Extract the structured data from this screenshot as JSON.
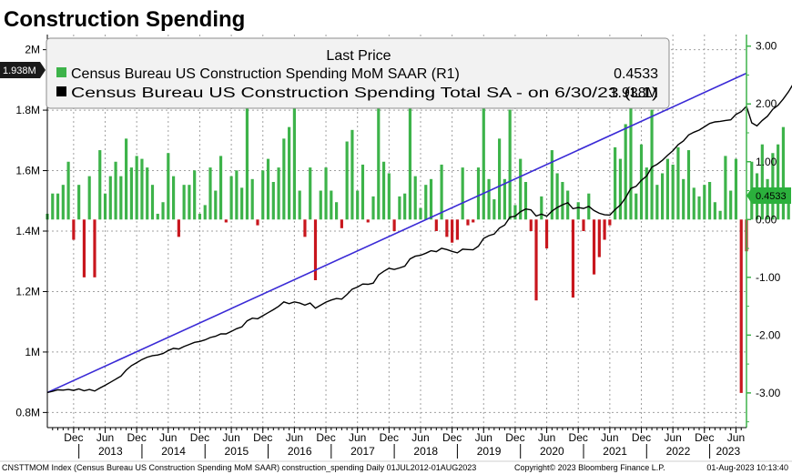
{
  "title": "Construction Spending",
  "legend": {
    "header": "Last Price",
    "items": [
      {
        "label": "Census Bureau US Construction Spending MoM SAAR  (R1)",
        "value": "0.4533",
        "color": "#3db34a"
      },
      {
        "label": "Census Bureau US Construction Spending Total SA -  on 6/30/23  (L1)",
        "value": "1.938M",
        "color": "#000000"
      }
    ]
  },
  "tags": {
    "left_last": "1.938M",
    "right_last": "0.4533"
  },
  "footer": {
    "left": "CNSTTMOM Index (Census Bureau US Construction Spending MoM SAAR) construction_spending  Daily 01JUL2012-01AUG2023",
    "middle": "Copyright© 2023 Bloomberg Finance L.P.",
    "right": "01-Aug-2023 10:13:40"
  },
  "colors": {
    "positive_bar": "#3db34a",
    "negative_bar": "#c8161d",
    "total_line": "#000000",
    "trend_line": "#3a2ad6",
    "right_axis": "#3db34a"
  },
  "chart_data": {
    "type": "bar+line",
    "title": "Construction Spending",
    "x_range": [
      "2012-07",
      "2023-08"
    ],
    "left_axis": {
      "ylim": [
        0.75,
        2.05
      ],
      "ticks": [
        0.8,
        1.0,
        1.2,
        1.4,
        1.6,
        1.8,
        2.0
      ],
      "tick_labels": [
        "0.8M",
        "1M",
        "1.2M",
        "1.4M",
        "1.6M",
        "1.8M",
        "2M"
      ],
      "units": "millions"
    },
    "right_axis": {
      "ylim": [
        -3.6,
        3.2
      ],
      "ticks": [
        -3,
        -2,
        -1,
        0,
        1,
        2,
        3
      ],
      "tick_labels": [
        "-3.00",
        "-2.00",
        "-1.00",
        "0.00",
        "1.00",
        "2.00",
        "3.00"
      ]
    },
    "x_tick_labels": [
      "Dec",
      "Jun",
      "Dec",
      "Jun",
      "Dec",
      "Jun",
      "Dec",
      "Jun",
      "Dec",
      "Jun",
      "Dec",
      "Jun",
      "Dec",
      "Jun",
      "Dec",
      "Jun",
      "Dec",
      "Jun",
      "Dec",
      "Jun",
      "Dec",
      "Jun"
    ],
    "x_tick_months": [
      "2012-12",
      "2013-06",
      "2013-12",
      "2014-06",
      "2014-12",
      "2015-06",
      "2015-12",
      "2016-06",
      "2016-12",
      "2017-06",
      "2017-12",
      "2018-06",
      "2018-12",
      "2019-06",
      "2019-12",
      "2020-06",
      "2020-12",
      "2021-06",
      "2021-12",
      "2022-06",
      "2022-12",
      "2023-06"
    ],
    "year_labels": [
      "2013",
      "2014",
      "2015",
      "2016",
      "2017",
      "2018",
      "2019",
      "2020",
      "2021",
      "2022",
      "2023"
    ],
    "mom_series": {
      "name": "Census Bureau US Construction Spending MoM SAAR",
      "start": "2012-07",
      "values": [
        0.1,
        0.45,
        0.45,
        0.6,
        1.0,
        -0.35,
        0.6,
        -1.0,
        0.75,
        -1.0,
        1.2,
        0.45,
        0.75,
        1.0,
        0.75,
        1.4,
        0.9,
        1.1,
        1.05,
        0.9,
        0.6,
        0.1,
        0.3,
        1.15,
        0.75,
        -0.3,
        0.6,
        0.6,
        0.85,
        0.1,
        0.25,
        0.9,
        0.5,
        1.1,
        -0.05,
        0.75,
        0.85,
        0.55,
        2.4,
        0.7,
        -0.1,
        0.85,
        1.05,
        0.65,
        0.9,
        1.4,
        1.6,
        1.95,
        0.5,
        -0.3,
        0.9,
        -1.05,
        0.5,
        0.9,
        0.5,
        0.3,
        -0.15,
        1.35,
        1.55,
        0.5,
        0.95,
        -0.05,
        0.4,
        2.2,
        1.0,
        0.8,
        -0.2,
        0.4,
        0.45,
        1.95,
        0.75,
        0.2,
        0.6,
        0.7,
        -0.2,
        0.95,
        -0.3,
        -0.4,
        -0.35,
        0.9,
        -0.1,
        -0.05,
        0.9,
        1.95,
        0.7,
        0.35,
        1.4,
        0.7,
        1.9,
        0.25,
        1.05,
        0.65,
        -0.2,
        -1.4,
        0.4,
        -0.5,
        1.2,
        0.8,
        0.65,
        0.5,
        -1.35,
        0.3,
        -0.2,
        0.45,
        -0.95,
        -0.65,
        -0.35,
        -0.1,
        1.25,
        1.05,
        1.65,
        2.05,
        0.45,
        1.3,
        0.9,
        1.9,
        0.6,
        0.8,
        1.05,
        0.95,
        1.25,
        0.7,
        1.2,
        0.55,
        0.4,
        0.6,
        0.65,
        0.3,
        0.15,
        1.1,
        0.5,
        1.05,
        -3.0,
        -0.55,
        1.0,
        0.8,
        1.3,
        0.7,
        1.15,
        1.3,
        1.6,
        0.5,
        1.1,
        0.55,
        1.8,
        -1.35,
        0.9,
        2.1,
        0.7,
        1.55,
        -0.2,
        0.9,
        0.8,
        0.65,
        0.4,
        0.25,
        1.55,
        1.1,
        1.75,
        1.3,
        0.75,
        1.35,
        1.5,
        1.2,
        1.0,
        1.35,
        2.25,
        -0.15,
        0.75,
        -0.3,
        -0.1,
        0.7,
        -0.4,
        -0.2,
        -1.15,
        -0.55,
        -0.35,
        -0.1,
        0.7,
        1.8,
        -0.1,
        0.35,
        0.6,
        0.35,
        1.15,
        0.4533
      ]
    },
    "total_series": {
      "name": "Census Bureau US Construction Spending Total SA",
      "start": "2012-07",
      "values": [
        0.866,
        0.87,
        0.875,
        0.874,
        0.876,
        0.873,
        0.878,
        0.872,
        0.876,
        0.871,
        0.881,
        0.89,
        0.9,
        0.91,
        0.92,
        0.94,
        0.955,
        0.965,
        0.975,
        0.983,
        0.988,
        0.99,
        0.995,
        1.005,
        1.012,
        1.01,
        1.018,
        1.025,
        1.032,
        1.035,
        1.04,
        1.048,
        1.052,
        1.06,
        1.06,
        1.068,
        1.077,
        1.083,
        1.103,
        1.112,
        1.11,
        1.12,
        1.13,
        1.14,
        1.151,
        1.166,
        1.16,
        1.166,
        1.162,
        1.155,
        1.162,
        1.145,
        1.155,
        1.165,
        1.172,
        1.177,
        1.175,
        1.19,
        1.208,
        1.215,
        1.225,
        1.224,
        1.228,
        1.255,
        1.267,
        1.277,
        1.273,
        1.278,
        1.284,
        1.308,
        1.317,
        1.32,
        1.327,
        1.335,
        1.332,
        1.343,
        1.339,
        1.333,
        1.328,
        1.34,
        1.339,
        1.338,
        1.35,
        1.376,
        1.385,
        1.39,
        1.41,
        1.42,
        1.446,
        1.449,
        1.464,
        1.473,
        1.47,
        1.45,
        1.456,
        1.449,
        1.466,
        1.478,
        1.487,
        1.494,
        1.474,
        1.478,
        1.475,
        1.482,
        1.468,
        1.459,
        1.454,
        1.453,
        1.471,
        1.486,
        1.51,
        1.541,
        1.548,
        1.568,
        1.582,
        1.612,
        1.621,
        1.634,
        1.651,
        1.666,
        1.686,
        1.698,
        1.718,
        1.727,
        1.734,
        1.745,
        1.756,
        1.761,
        1.763,
        1.766,
        1.768,
        1.786,
        1.795,
        1.813,
        1.758,
        1.748,
        1.766,
        1.78,
        1.803,
        1.816,
        1.837,
        1.861,
        1.89,
        1.899,
        1.92,
        1.929,
        1.964,
        1.937,
        1.955,
        1.996,
        2.01,
        2.041,
        2.037,
        2.055,
        2.072,
        2.085,
        2.093,
        2.098,
        2.13,
        2.153,
        2.19,
        2.218,
        2.235,
        2.266,
        2.3,
        2.327,
        2.35,
        2.382,
        2.436,
        2.433,
        2.45,
        2.444,
        2.442,
        2.457,
        2.448,
        2.443,
        2.415,
        2.402,
        2.394,
        2.39,
        2.405,
        2.448,
        2.446,
        2.454,
        2.469,
        2.477,
        2.506,
        1.938
      ]
    },
    "trend_line": {
      "name": "linear trend",
      "start": [
        "2012-07",
        0.866
      ],
      "end": [
        "2023-08",
        1.922
      ]
    }
  }
}
